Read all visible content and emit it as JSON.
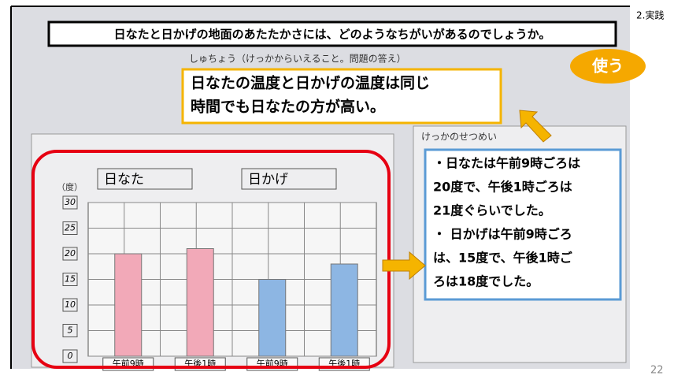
{
  "slide": {
    "section": "2.実践",
    "page_number": "22",
    "title": "日なたと日かげの地面のあたたかさには、どのようなちがいがあるのでしょうか。"
  },
  "callout": {
    "lines": [
      "日なたの温度と日かげの温度は同じ",
      "時間でも日なたの方が高い。"
    ]
  },
  "badge": "使う",
  "explanation": {
    "lines": [
      "・日なたは午前9時ごろは",
      "20度で、午後1時ごろは",
      "21度ぐらいでした。",
      "・ 日かげは午前9時ごろ",
      "は、15度で、午後1時ご",
      "ろは18度でした。"
    ]
  },
  "worksheet": {
    "header": "しゅちょう（けっかからいえること。問題の答え）",
    "section": "けっかのせつめい",
    "unit": "（度）"
  },
  "chart_data": {
    "type": "bar",
    "categories": [
      "午前9時",
      "午後1時"
    ],
    "series": [
      {
        "name": "日なた",
        "color": "#f2a9b8",
        "values": [
          20,
          21
        ]
      },
      {
        "name": "日かげ",
        "color": "#8db6e3",
        "values": [
          15,
          18
        ]
      }
    ],
    "ylim": [
      0,
      30
    ],
    "yticks": [
      0,
      5,
      10,
      15,
      20,
      25,
      30
    ],
    "grid": true
  }
}
